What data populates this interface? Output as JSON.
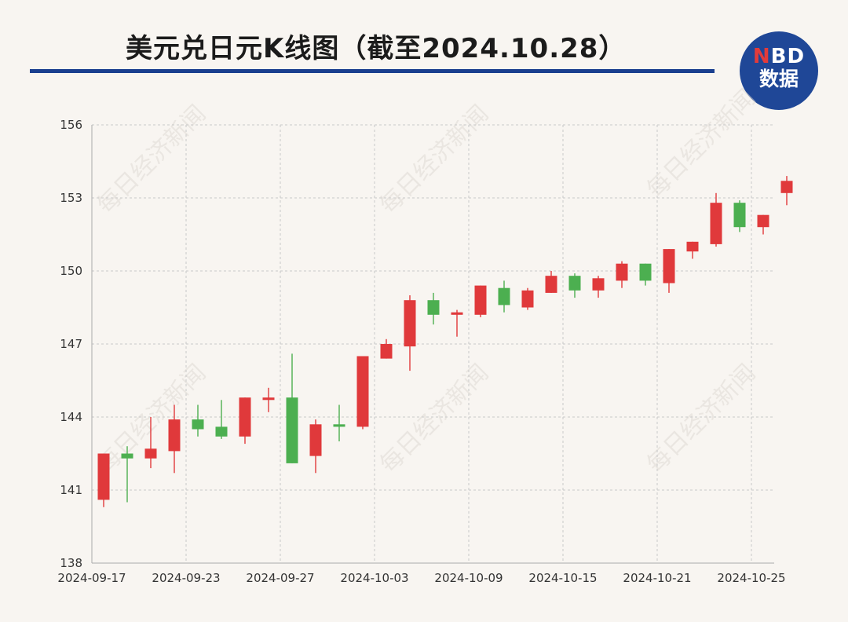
{
  "header": {
    "title": "美元兑日元K线图（截至2024.10.28）",
    "logo_line1_a": "N",
    "logo_line1_b": "BD",
    "logo_line2": "数据"
  },
  "watermark_text": "每日经济新闻",
  "colors": {
    "up": "#e0393b",
    "down": "#4caf50",
    "rule": "#1a3f8f",
    "logo": "#1f4797"
  },
  "chart_data": {
    "type": "candlestick",
    "title": "美元兑日元K线图（截至2024.10.28）",
    "ylim": [
      138,
      156
    ],
    "yticks": [
      138,
      141,
      144,
      147,
      150,
      153,
      156
    ],
    "xtick_labels": [
      "2024-09-17",
      "2024-09-23",
      "2024-09-27",
      "2024-10-03",
      "2024-10-09",
      "2024-10-15",
      "2024-10-21",
      "2024-10-25"
    ],
    "xtick_index": [
      0,
      4,
      8,
      12,
      16,
      20,
      24,
      28
    ],
    "grid": true,
    "candles": [
      {
        "open": 140.6,
        "close": 142.5,
        "high": 142.5,
        "low": 140.3
      },
      {
        "open": 142.5,
        "close": 142.3,
        "high": 142.8,
        "low": 140.5
      },
      {
        "open": 142.3,
        "close": 142.7,
        "high": 144.0,
        "low": 141.9
      },
      {
        "open": 142.6,
        "close": 143.9,
        "high": 144.5,
        "low": 141.7
      },
      {
        "open": 143.9,
        "close": 143.5,
        "high": 144.5,
        "low": 143.2
      },
      {
        "open": 143.6,
        "close": 143.2,
        "high": 144.7,
        "low": 143.1
      },
      {
        "open": 143.2,
        "close": 144.8,
        "high": 144.8,
        "low": 142.9
      },
      {
        "open": 144.7,
        "close": 144.8,
        "high": 145.2,
        "low": 144.2
      },
      {
        "open": 144.8,
        "close": 142.1,
        "high": 146.6,
        "low": 142.1
      },
      {
        "open": 142.4,
        "close": 143.7,
        "high": 143.9,
        "low": 141.7
      },
      {
        "open": 143.7,
        "close": 143.6,
        "high": 144.5,
        "low": 143.0
      },
      {
        "open": 143.6,
        "close": 146.5,
        "high": 146.5,
        "low": 143.5
      },
      {
        "open": 146.4,
        "close": 147.0,
        "high": 147.2,
        "low": 146.4
      },
      {
        "open": 146.9,
        "close": 148.8,
        "high": 149.0,
        "low": 145.9
      },
      {
        "open": 148.8,
        "close": 148.2,
        "high": 149.1,
        "low": 147.8
      },
      {
        "open": 148.2,
        "close": 148.3,
        "high": 148.4,
        "low": 147.3
      },
      {
        "open": 148.2,
        "close": 149.4,
        "high": 149.4,
        "low": 148.1
      },
      {
        "open": 149.3,
        "close": 148.6,
        "high": 149.6,
        "low": 148.3
      },
      {
        "open": 148.5,
        "close": 149.2,
        "high": 149.3,
        "low": 148.4
      },
      {
        "open": 149.1,
        "close": 149.8,
        "high": 150.0,
        "low": 149.1
      },
      {
        "open": 149.8,
        "close": 149.2,
        "high": 149.9,
        "low": 148.9
      },
      {
        "open": 149.2,
        "close": 149.7,
        "high": 149.8,
        "low": 148.9
      },
      {
        "open": 149.6,
        "close": 150.3,
        "high": 150.4,
        "low": 149.3
      },
      {
        "open": 150.3,
        "close": 149.6,
        "high": 150.3,
        "low": 149.4
      },
      {
        "open": 149.5,
        "close": 150.9,
        "high": 150.9,
        "low": 149.1
      },
      {
        "open": 150.8,
        "close": 151.2,
        "high": 151.2,
        "low": 150.5
      },
      {
        "open": 151.1,
        "close": 152.8,
        "high": 153.2,
        "low": 151.0
      },
      {
        "open": 152.8,
        "close": 151.8,
        "high": 152.9,
        "low": 151.6
      },
      {
        "open": 151.8,
        "close": 152.3,
        "high": 152.3,
        "low": 151.5
      },
      {
        "open": 153.2,
        "close": 153.7,
        "high": 153.9,
        "low": 152.7
      }
    ]
  }
}
